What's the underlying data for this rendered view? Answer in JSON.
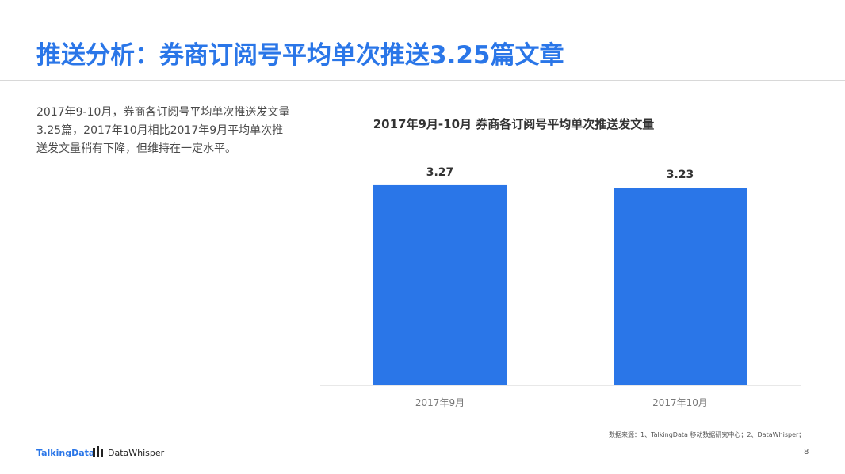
{
  "header": {
    "title": "推送分析：券商订阅号平均单次推送3.25篇文章"
  },
  "description": "2017年9-10月，券商各订阅号平均单次推送发文量3.25篇，2017年10月相比2017年9月平均单次推送发文量稍有下降，但维持在一定水平。",
  "chart_data": {
    "type": "bar",
    "title": "2017年9月-10月 券商各订阅号平均单次推送发文量",
    "categories": [
      "2017年9月",
      "2017年10月"
    ],
    "values": [
      3.27,
      3.23
    ],
    "data_labels": [
      "3.27",
      "3.23"
    ],
    "ylim": [
      0,
      3.45
    ],
    "grid": false,
    "colors": {
      "bar": "#2a76e8"
    }
  },
  "footer": {
    "source": "数据来源：1、TalkingData 移动数据研究中心；2、DataWhisper；",
    "logo_talkingdata": "TalkingData",
    "logo_datawhisper": "DataWhisper",
    "page_number": "8"
  }
}
